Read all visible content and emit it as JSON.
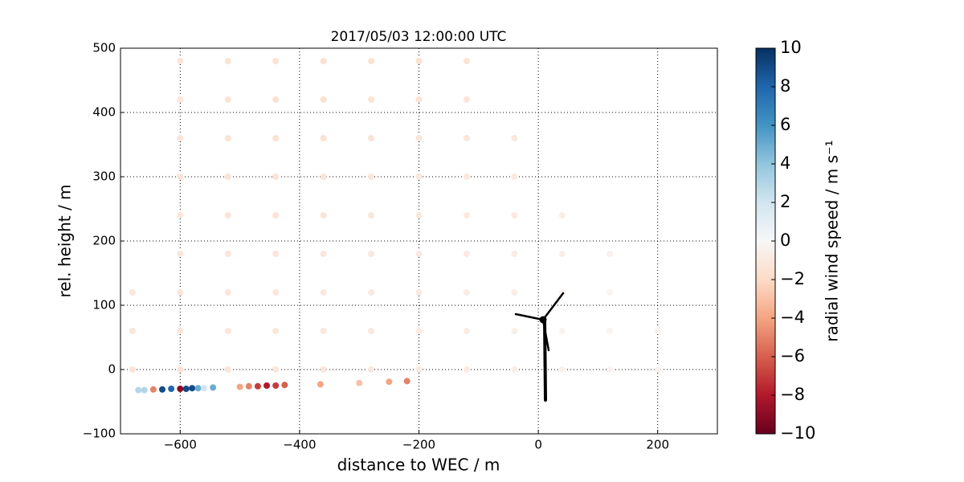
{
  "chart_data": {
    "type": "scatter",
    "title": "2017/05/03 12:00:00 UTC",
    "x_label": "distance to WEC / m",
    "y_label": "rel. height / m",
    "colorbar_label": "radial wind speed / m s⁻¹",
    "xlim": [
      -700,
      300
    ],
    "ylim": [
      -100,
      500
    ],
    "xticks": [
      {
        "value": -600,
        "label": "−600"
      },
      {
        "value": -400,
        "label": "−400"
      },
      {
        "value": -200,
        "label": "−200"
      },
      0,
      200
    ],
    "yticks": [
      {
        "value": -100,
        "label": "−100"
      },
      0,
      100,
      200,
      300,
      400,
      500
    ],
    "grid": true,
    "clim": [
      -10,
      10
    ],
    "cticks": [
      {
        "value": -10,
        "label": "−10"
      },
      {
        "value": -8,
        "label": "−8"
      },
      {
        "value": -6,
        "label": "−6"
      },
      {
        "value": -4,
        "label": "−4"
      },
      {
        "value": -2,
        "label": "−2"
      },
      0,
      2,
      4,
      6,
      8,
      10
    ],
    "colormap": [
      "#67001f",
      "#b2182b",
      "#d6604d",
      "#f4a582",
      "#fddbc7",
      "#f7f7f7",
      "#d1e5f0",
      "#92c5de",
      "#4393c3",
      "#2166ac",
      "#053061"
    ],
    "x": [
      -600,
      -520,
      -440,
      -360,
      -280,
      -200,
      -120,
      -600,
      -520,
      -440,
      -360,
      -280,
      -200,
      -120,
      -600,
      -520,
      -440,
      -360,
      -280,
      -200,
      -120,
      -40,
      -600,
      -520,
      -440,
      -360,
      -280,
      -200,
      -120,
      -40,
      -600,
      -520,
      -440,
      -360,
      -280,
      -200,
      -120,
      -40,
      40,
      -600,
      -520,
      -440,
      -360,
      -280,
      -200,
      -120,
      -40,
      40,
      120,
      -680,
      -600,
      -520,
      -440,
      -360,
      -280,
      -200,
      -120,
      -40,
      40,
      120,
      -680,
      -600,
      -520,
      -440,
      -360,
      -280,
      -200,
      -120,
      -40,
      40,
      120,
      200,
      -680,
      -600,
      -520,
      -440,
      -360,
      -280,
      -200,
      -120,
      -40,
      40,
      120,
      200,
      -670,
      -660,
      -645,
      -630,
      -615,
      -600,
      -590,
      -580,
      -570,
      -560,
      -545,
      -500,
      -485,
      -470,
      -455,
      -440,
      -425,
      -365,
      -300,
      -250,
      -220
    ],
    "y": [
      480,
      480,
      480,
      480,
      480,
      480,
      480,
      420,
      420,
      420,
      420,
      420,
      420,
      420,
      360,
      360,
      360,
      360,
      360,
      360,
      360,
      360,
      300,
      300,
      300,
      300,
      300,
      300,
      300,
      300,
      240,
      240,
      240,
      240,
      240,
      240,
      240,
      240,
      240,
      180,
      180,
      180,
      180,
      180,
      180,
      180,
      180,
      180,
      180,
      120,
      120,
      120,
      120,
      120,
      120,
      120,
      120,
      120,
      120,
      120,
      60,
      60,
      60,
      60,
      60,
      60,
      60,
      60,
      60,
      60,
      60,
      60,
      0,
      0,
      0,
      0,
      0,
      0,
      0,
      0,
      0,
      0,
      0,
      0,
      -32,
      -32,
      -31,
      -31,
      -30,
      -30,
      -30,
      -29,
      -29,
      -29,
      -28,
      -27,
      -26,
      -26,
      -25,
      -25,
      -24,
      -23,
      -21,
      -19,
      -18
    ],
    "values": [
      -1.2,
      -1.4,
      -1.5,
      -1.6,
      -1.6,
      -1.5,
      -1.4,
      -1.2,
      -1.4,
      -1.6,
      -1.6,
      -1.5,
      -1.4,
      -1.3,
      -1.3,
      -1.5,
      -1.6,
      -1.5,
      -1.4,
      -1.3,
      -1.2,
      -1.1,
      -1.3,
      -1.4,
      -1.5,
      -1.4,
      -1.3,
      -1.2,
      -1.1,
      -1.0,
      -1.2,
      -1.3,
      -1.4,
      -1.3,
      -1.2,
      -1.1,
      -1.0,
      -0.9,
      -0.7,
      -1.2,
      -1.3,
      -1.3,
      -1.2,
      -1.1,
      -1.0,
      -0.9,
      -0.8,
      -0.6,
      -0.4,
      -1.2,
      -1.2,
      -1.3,
      -1.2,
      -1.1,
      -1.0,
      -0.9,
      -0.8,
      -0.7,
      -0.4,
      -0.2,
      -1.2,
      -1.2,
      -1.2,
      -1.2,
      -1.1,
      -1.0,
      -0.9,
      -0.8,
      -0.6,
      -0.3,
      -0.2,
      -0.2,
      -1.4,
      -1.4,
      -1.3,
      -1.3,
      -1.2,
      -1.1,
      -1.0,
      -0.9,
      -0.7,
      -0.5,
      -0.3,
      -0.3,
      3,
      3,
      -5,
      9,
      8,
      -9,
      9,
      9,
      5,
      2,
      5,
      -4,
      -5,
      -7,
      -8,
      -7,
      -6,
      -4,
      -3,
      -4,
      -5
    ]
  }
}
